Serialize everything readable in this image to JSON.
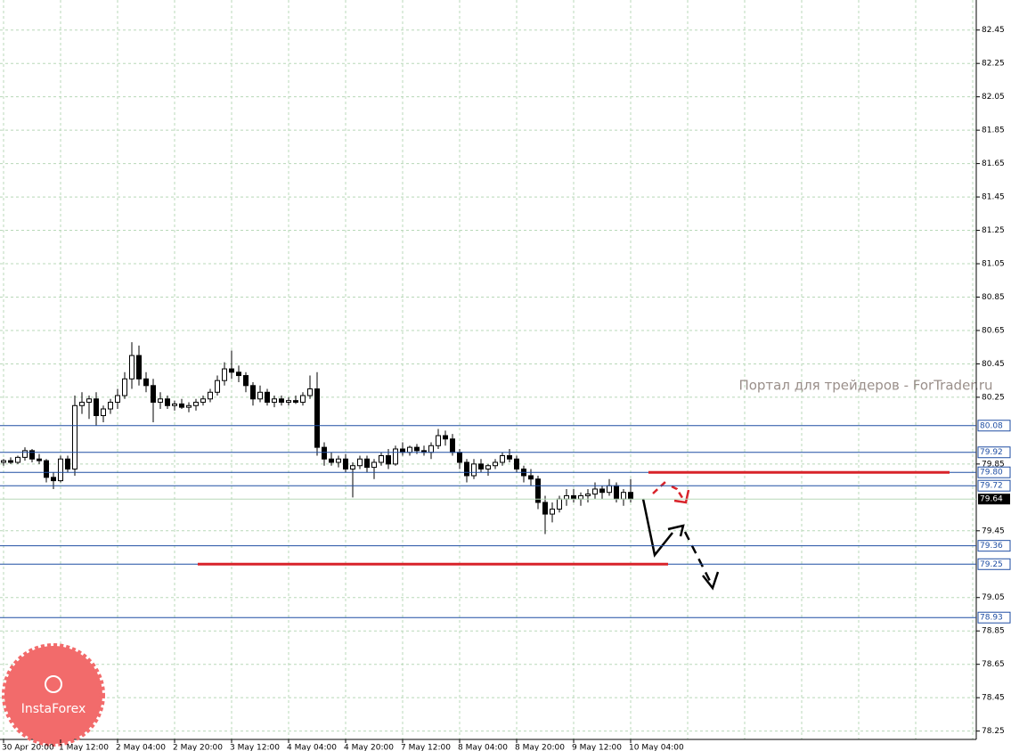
{
  "chart_data": {
    "type": "candlestick",
    "categories": [
      "30 Apr 20:00",
      null,
      null,
      null,
      null,
      null,
      null,
      null,
      "1 May 12:00",
      null,
      null,
      null,
      null,
      null,
      null,
      null,
      "2 May 04:00",
      null,
      null,
      null,
      null,
      null,
      null,
      null,
      "2 May 20:00",
      null,
      null,
      null,
      null,
      null,
      null,
      null,
      "3 May 12:00",
      null,
      null,
      null,
      null,
      null,
      null,
      null,
      "4 May 04:00",
      null,
      null,
      null,
      null,
      null,
      null,
      null,
      "4 May 20:00",
      null,
      null,
      null,
      null,
      null,
      null,
      null,
      "7 May 12:00",
      null,
      null,
      null,
      null,
      null,
      null,
      null,
      "8 May 04:00",
      null,
      null,
      null,
      null,
      null,
      null,
      null,
      "8 May 20:00",
      null,
      null,
      null,
      null,
      null,
      null,
      null,
      "9 May 12:00",
      null,
      null,
      null,
      null,
      null,
      null,
      null,
      "10 May 04:00"
    ],
    "ohlc": [
      [
        79.86,
        79.88,
        79.84,
        79.87
      ],
      [
        79.87,
        79.89,
        79.85,
        79.86
      ],
      [
        79.86,
        79.9,
        79.85,
        79.89
      ],
      [
        79.89,
        79.95,
        79.87,
        79.93
      ],
      [
        79.93,
        79.94,
        79.86,
        79.88
      ],
      [
        79.88,
        79.91,
        79.85,
        79.87
      ],
      [
        79.87,
        79.88,
        79.74,
        79.77
      ],
      [
        79.77,
        79.8,
        79.7,
        79.75
      ],
      [
        79.75,
        79.9,
        79.74,
        79.88
      ],
      [
        79.88,
        79.9,
        79.8,
        79.82
      ],
      [
        79.82,
        80.26,
        79.78,
        80.2
      ],
      [
        80.2,
        80.28,
        80.15,
        80.22
      ],
      [
        80.22,
        80.26,
        80.12,
        80.24
      ],
      [
        80.24,
        80.28,
        80.08,
        80.14
      ],
      [
        80.14,
        80.2,
        80.1,
        80.18
      ],
      [
        80.18,
        80.24,
        80.15,
        80.22
      ],
      [
        80.22,
        80.3,
        80.18,
        80.26
      ],
      [
        80.26,
        80.4,
        80.24,
        80.36
      ],
      [
        80.36,
        80.58,
        80.3,
        80.5
      ],
      [
        80.5,
        80.56,
        80.32,
        80.36
      ],
      [
        80.36,
        80.4,
        80.28,
        80.32
      ],
      [
        80.32,
        80.36,
        80.1,
        80.22
      ],
      [
        80.22,
        80.28,
        80.18,
        80.24
      ],
      [
        80.24,
        80.26,
        80.18,
        80.2
      ],
      [
        80.2,
        80.23,
        80.17,
        80.21
      ],
      [
        80.21,
        80.24,
        80.18,
        80.19
      ],
      [
        80.19,
        80.22,
        80.16,
        80.2
      ],
      [
        80.2,
        80.24,
        80.17,
        80.22
      ],
      [
        80.22,
        80.26,
        80.2,
        80.24
      ],
      [
        80.24,
        80.3,
        80.22,
        80.28
      ],
      [
        80.28,
        80.38,
        80.26,
        80.35
      ],
      [
        80.35,
        80.46,
        80.32,
        80.42
      ],
      [
        80.42,
        80.53,
        80.36,
        80.4
      ],
      [
        80.4,
        80.44,
        80.34,
        80.38
      ],
      [
        80.38,
        80.4,
        80.28,
        80.32
      ],
      [
        80.32,
        80.34,
        80.2,
        80.24
      ],
      [
        80.24,
        80.32,
        80.22,
        80.28
      ],
      [
        80.28,
        80.3,
        80.2,
        80.22
      ],
      [
        80.22,
        80.26,
        80.19,
        80.24
      ],
      [
        80.24,
        80.26,
        80.2,
        80.22
      ],
      [
        80.22,
        80.25,
        80.2,
        80.23
      ],
      [
        80.23,
        80.26,
        80.21,
        80.22
      ],
      [
        80.22,
        80.28,
        80.2,
        80.26
      ],
      [
        80.26,
        80.38,
        80.24,
        80.3
      ],
      [
        80.3,
        80.4,
        79.9,
        79.95
      ],
      [
        79.95,
        79.98,
        79.84,
        79.88
      ],
      [
        79.88,
        79.92,
        79.84,
        79.86
      ],
      [
        79.86,
        79.9,
        79.83,
        79.88
      ],
      [
        79.88,
        79.91,
        79.8,
        79.82
      ],
      [
        79.82,
        79.86,
        79.65,
        79.84
      ],
      [
        79.84,
        79.9,
        79.82,
        79.88
      ],
      [
        79.88,
        79.9,
        79.8,
        79.83
      ],
      [
        79.83,
        79.88,
        79.76,
        79.86
      ],
      [
        79.86,
        79.92,
        79.84,
        79.9
      ],
      [
        79.9,
        79.94,
        79.82,
        79.85
      ],
      [
        79.85,
        79.96,
        79.84,
        79.94
      ],
      [
        79.94,
        79.98,
        79.9,
        79.92
      ],
      [
        79.92,
        79.96,
        79.9,
        79.95
      ],
      [
        79.95,
        79.97,
        79.91,
        79.93
      ],
      [
        79.93,
        79.96,
        79.9,
        79.92
      ],
      [
        79.92,
        79.98,
        79.88,
        79.96
      ],
      [
        79.96,
        80.06,
        79.94,
        80.02
      ],
      [
        80.02,
        80.05,
        79.96,
        80.0
      ],
      [
        80.0,
        80.03,
        79.9,
        79.92
      ],
      [
        79.92,
        79.94,
        79.82,
        79.86
      ],
      [
        79.86,
        79.88,
        79.74,
        79.78
      ],
      [
        79.78,
        79.88,
        79.76,
        79.85
      ],
      [
        79.85,
        79.88,
        79.8,
        79.82
      ],
      [
        79.82,
        79.85,
        79.78,
        79.84
      ],
      [
        79.84,
        79.88,
        79.82,
        79.86
      ],
      [
        79.86,
        79.92,
        79.84,
        79.9
      ],
      [
        79.9,
        79.94,
        79.86,
        79.88
      ],
      [
        79.88,
        79.9,
        79.8,
        79.82
      ],
      [
        79.82,
        79.84,
        79.74,
        79.78
      ],
      [
        79.78,
        79.82,
        79.72,
        79.76
      ],
      [
        79.76,
        79.78,
        79.58,
        79.62
      ],
      [
        79.62,
        79.66,
        79.43,
        79.55
      ],
      [
        79.55,
        79.62,
        79.5,
        79.58
      ],
      [
        79.58,
        79.66,
        79.56,
        79.64
      ],
      [
        79.64,
        79.7,
        79.6,
        79.66
      ],
      [
        79.66,
        79.7,
        79.62,
        79.64
      ],
      [
        79.64,
        79.68,
        79.6,
        79.66
      ],
      [
        79.66,
        79.7,
        79.62,
        79.67
      ],
      [
        79.67,
        79.74,
        79.64,
        79.7
      ],
      [
        79.7,
        79.72,
        79.64,
        79.68
      ],
      [
        79.68,
        79.76,
        79.66,
        79.72
      ],
      [
        79.72,
        79.74,
        79.62,
        79.64
      ],
      [
        79.64,
        79.7,
        79.6,
        79.68
      ],
      [
        79.68,
        79.76,
        79.62,
        79.64
      ]
    ],
    "ylim": [
      78.2,
      82.63
    ],
    "yticks": [
      82.45,
      82.25,
      82.05,
      81.85,
      81.65,
      81.45,
      81.25,
      81.05,
      80.85,
      80.65,
      80.45,
      80.25,
      79.85,
      79.45,
      79.05,
      78.85,
      78.65,
      78.45,
      78.25
    ],
    "grid": true,
    "levels": [
      80.08,
      79.92,
      {
        "value": 79.8,
        "label": "79.80"
      },
      79.72,
      79.36,
      {
        "value": 79.25,
        "label": "79.25"
      },
      78.93
    ],
    "level_color": "#1f4ea3",
    "red_levels": [
      79.8,
      79.25
    ],
    "red_color": "#d8232a",
    "current_price": 79.64,
    "watermark": "Портал для трейдеров - ForTrader.ru",
    "logo": "InstaForex"
  }
}
